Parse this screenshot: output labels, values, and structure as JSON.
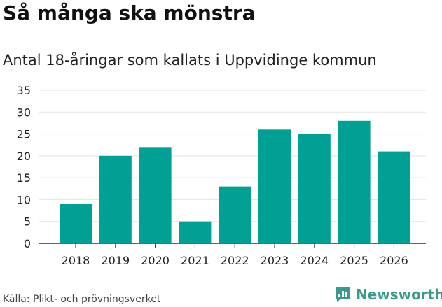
{
  "title": "Så många ska mönstra",
  "subtitle": "Antal 18-åringar som kallats i Uppvidinge kommun",
  "source": "Källa: Plikt- och prövningsverket",
  "brand": {
    "name": "Newsworthy",
    "icon": "newsworthy-logo-icon",
    "color": "#3a9a8c"
  },
  "colors": {
    "bar": "#00a094",
    "grid": "#e3e3e3",
    "axis": "#333333"
  },
  "chart_data": {
    "type": "bar",
    "title": "Så många ska mönstra",
    "subtitle": "Antal 18-åringar som kallats i Uppvidinge kommun",
    "xlabel": "",
    "ylabel": "",
    "categories": [
      "2018",
      "2019",
      "2020",
      "2021",
      "2022",
      "2023",
      "2024",
      "2025",
      "2026"
    ],
    "values": [
      9,
      20,
      22,
      5,
      13,
      26,
      25,
      28,
      21
    ],
    "ylim": [
      0,
      35
    ],
    "yticks": [
      0,
      5,
      10,
      15,
      20,
      25,
      30,
      35
    ],
    "grid": true,
    "legend": "none"
  }
}
